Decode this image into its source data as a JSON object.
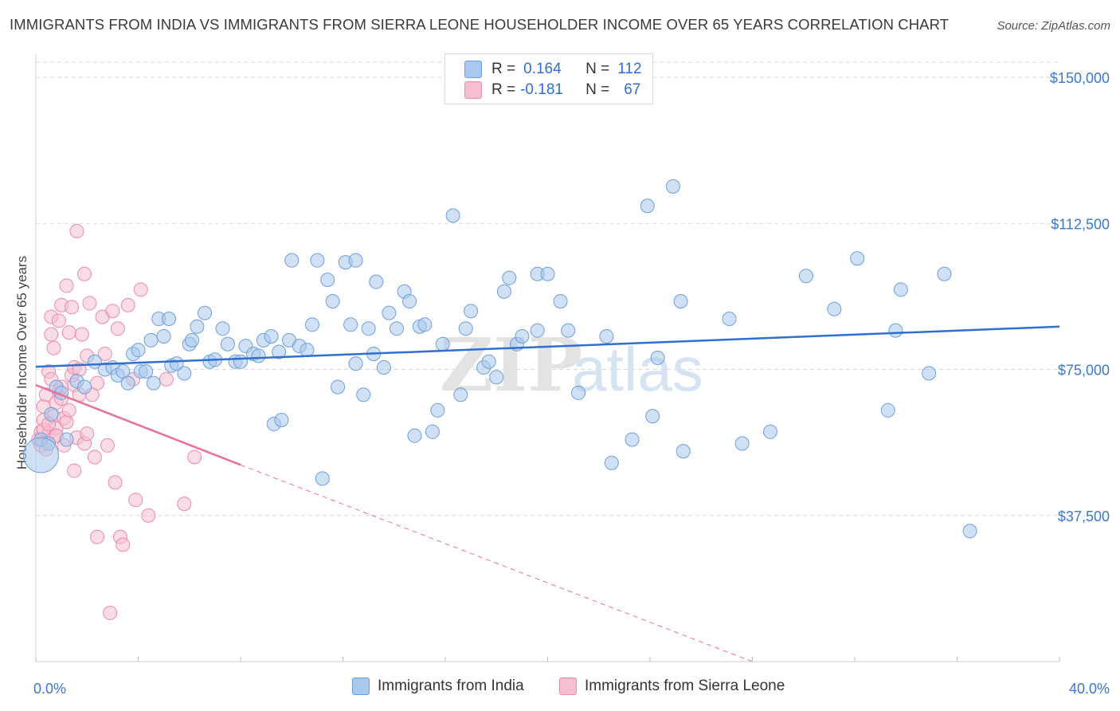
{
  "title": "IMMIGRANTS FROM INDIA VS IMMIGRANTS FROM SIERRA LEONE HOUSEHOLDER INCOME OVER 65 YEARS CORRELATION CHART",
  "source": "Source: ZipAtlas.com",
  "watermark": "ZIPatlas",
  "stats": {
    "india": {
      "r_label": "R =",
      "r_value": "0.164",
      "n_label": "N =",
      "n_value": "112"
    },
    "sierra": {
      "r_label": "R =",
      "r_value": "-0.181",
      "n_label": "N =",
      "n_value": "67"
    }
  },
  "colors": {
    "india_fill": "#a9c8ee",
    "india_stroke": "#6d9fdc",
    "india_line": "#2f6fd1",
    "sierra_fill": "#f6bfd0",
    "sierra_stroke": "#ec8aa9",
    "sierra_line": "#e8729a",
    "tick_label": "#3b78cf",
    "grid": "#d9d9d9"
  },
  "chart_data": {
    "type": "scatter",
    "ylabel": "Householder Income Over 65 years",
    "xlim": [
      0,
      40
    ],
    "ylim": [
      0,
      150000
    ],
    "x_tick_labels": [
      "0.0%",
      "40.0%"
    ],
    "y_ticks": [
      37500,
      75000,
      112500,
      150000
    ],
    "y_tick_labels": [
      "$37,500",
      "$75,000",
      "$112,500",
      "$150,000"
    ],
    "grid": "horizontal dashed",
    "legend_position": "bottom",
    "series": [
      {
        "name": "Immigrants from India",
        "trend": {
          "x": [
            0,
            40
          ],
          "y": [
            75700,
            86000
          ]
        },
        "points": [
          [
            0.2,
            57000
          ],
          [
            0.5,
            56000
          ],
          [
            0.6,
            63500
          ],
          [
            0.8,
            70500
          ],
          [
            1.0,
            69000
          ],
          [
            1.2,
            57000
          ],
          [
            1.6,
            72000
          ],
          [
            1.9,
            70500
          ],
          [
            2.3,
            77000
          ],
          [
            2.7,
            75000
          ],
          [
            3.0,
            75500
          ],
          [
            3.2,
            73500
          ],
          [
            3.4,
            74500
          ],
          [
            3.6,
            71500
          ],
          [
            3.8,
            79000
          ],
          [
            4.0,
            80000
          ],
          [
            4.1,
            74500
          ],
          [
            4.3,
            74500
          ],
          [
            4.5,
            82500
          ],
          [
            4.6,
            71500
          ],
          [
            4.8,
            88000
          ],
          [
            5.0,
            83500
          ],
          [
            5.2,
            88000
          ],
          [
            5.3,
            76000
          ],
          [
            5.5,
            76500
          ],
          [
            5.8,
            74000
          ],
          [
            6.0,
            81500
          ],
          [
            6.1,
            82500
          ],
          [
            6.3,
            86000
          ],
          [
            6.6,
            89500
          ],
          [
            6.8,
            77000
          ],
          [
            7.0,
            77500
          ],
          [
            7.3,
            85500
          ],
          [
            7.5,
            81500
          ],
          [
            7.8,
            77000
          ],
          [
            8.0,
            77000
          ],
          [
            8.2,
            81000
          ],
          [
            8.5,
            79000
          ],
          [
            8.7,
            78500
          ],
          [
            8.9,
            82500
          ],
          [
            9.2,
            83500
          ],
          [
            9.3,
            61000
          ],
          [
            9.5,
            79500
          ],
          [
            9.6,
            62000
          ],
          [
            9.9,
            82500
          ],
          [
            10.0,
            103000
          ],
          [
            10.3,
            81000
          ],
          [
            10.6,
            80000
          ],
          [
            10.8,
            86500
          ],
          [
            11.0,
            103000
          ],
          [
            11.2,
            47000
          ],
          [
            11.4,
            98000
          ],
          [
            11.6,
            92500
          ],
          [
            11.8,
            70500
          ],
          [
            12.1,
            102500
          ],
          [
            12.3,
            86500
          ],
          [
            12.5,
            103000
          ],
          [
            12.5,
            76500
          ],
          [
            12.8,
            68500
          ],
          [
            13.0,
            85500
          ],
          [
            13.2,
            79000
          ],
          [
            13.3,
            97500
          ],
          [
            13.6,
            75500
          ],
          [
            13.8,
            89500
          ],
          [
            14.1,
            85500
          ],
          [
            14.4,
            95000
          ],
          [
            14.6,
            92500
          ],
          [
            14.8,
            58000
          ],
          [
            15.0,
            86000
          ],
          [
            15.2,
            86500
          ],
          [
            15.5,
            59000
          ],
          [
            15.7,
            64500
          ],
          [
            15.9,
            81500
          ],
          [
            16.3,
            114500
          ],
          [
            16.6,
            68500
          ],
          [
            16.8,
            85500
          ],
          [
            17.0,
            90000
          ],
          [
            17.5,
            75500
          ],
          [
            17.7,
            77000
          ],
          [
            18.0,
            73000
          ],
          [
            18.3,
            95000
          ],
          [
            18.5,
            98500
          ],
          [
            18.8,
            81500
          ],
          [
            19.0,
            83500
          ],
          [
            19.6,
            99500
          ],
          [
            19.6,
            85000
          ],
          [
            20.0,
            99500
          ],
          [
            20.5,
            92500
          ],
          [
            20.8,
            85000
          ],
          [
            21.2,
            69000
          ],
          [
            22.3,
            83500
          ],
          [
            22.5,
            51000
          ],
          [
            23.3,
            57000
          ],
          [
            23.9,
            117000
          ],
          [
            24.1,
            63000
          ],
          [
            24.3,
            78000
          ],
          [
            24.9,
            122000
          ],
          [
            25.2,
            92500
          ],
          [
            25.3,
            54000
          ],
          [
            27.1,
            88000
          ],
          [
            27.6,
            56000
          ],
          [
            28.7,
            59000
          ],
          [
            30.1,
            99000
          ],
          [
            31.2,
            90500
          ],
          [
            32.1,
            103500
          ],
          [
            33.3,
            64500
          ],
          [
            33.6,
            85000
          ],
          [
            33.8,
            95500
          ],
          [
            34.9,
            74000
          ],
          [
            35.5,
            99500
          ],
          [
            36.5,
            33500
          ],
          [
            0.2,
            53000
          ]
        ]
      },
      {
        "name": "Immigrants from Sierra Leone",
        "trend_solid": {
          "x": [
            0,
            8
          ],
          "y": [
            71000,
            50500
          ]
        },
        "trend_dashed": {
          "x": [
            8,
            28
          ],
          "y": [
            50500,
            0
          ]
        },
        "points": [
          [
            0.1,
            57000
          ],
          [
            0.2,
            55500
          ],
          [
            0.2,
            59000
          ],
          [
            0.3,
            62000
          ],
          [
            0.3,
            65500
          ],
          [
            0.4,
            68500
          ],
          [
            0.4,
            54500
          ],
          [
            0.5,
            74500
          ],
          [
            0.5,
            58500
          ],
          [
            0.6,
            88500
          ],
          [
            0.6,
            72500
          ],
          [
            0.6,
            84000
          ],
          [
            0.7,
            63000
          ],
          [
            0.7,
            80500
          ],
          [
            0.8,
            66500
          ],
          [
            0.8,
            58000
          ],
          [
            0.8,
            60000
          ],
          [
            0.9,
            69500
          ],
          [
            0.9,
            87500
          ],
          [
            1.0,
            91500
          ],
          [
            1.0,
            67500
          ],
          [
            1.1,
            55500
          ],
          [
            1.1,
            62500
          ],
          [
            1.2,
            61500
          ],
          [
            1.2,
            96500
          ],
          [
            1.3,
            84500
          ],
          [
            1.3,
            64500
          ],
          [
            1.4,
            73500
          ],
          [
            1.4,
            91000
          ],
          [
            1.5,
            75500
          ],
          [
            1.5,
            71000
          ],
          [
            1.5,
            49000
          ],
          [
            1.6,
            110500
          ],
          [
            1.6,
            57500
          ],
          [
            1.7,
            75000
          ],
          [
            1.7,
            68500
          ],
          [
            1.8,
            84000
          ],
          [
            1.9,
            56000
          ],
          [
            1.9,
            99500
          ],
          [
            2.0,
            58500
          ],
          [
            2.0,
            78500
          ],
          [
            2.1,
            92000
          ],
          [
            2.2,
            68500
          ],
          [
            2.3,
            52500
          ],
          [
            2.4,
            71500
          ],
          [
            2.4,
            32000
          ],
          [
            2.6,
            88500
          ],
          [
            2.7,
            79000
          ],
          [
            2.8,
            55500
          ],
          [
            2.9,
            12500
          ],
          [
            3.0,
            90000
          ],
          [
            3.1,
            46000
          ],
          [
            3.2,
            85500
          ],
          [
            3.3,
            32000
          ],
          [
            3.4,
            30000
          ],
          [
            3.6,
            91500
          ],
          [
            3.8,
            72500
          ],
          [
            3.9,
            41500
          ],
          [
            4.1,
            95500
          ],
          [
            4.4,
            37500
          ],
          [
            5.1,
            72500
          ],
          [
            5.8,
            40500
          ],
          [
            6.2,
            52500
          ],
          [
            0.8,
            58000
          ],
          [
            0.3,
            59500
          ],
          [
            1.0,
            70500
          ],
          [
            0.5,
            61000
          ]
        ]
      }
    ]
  }
}
